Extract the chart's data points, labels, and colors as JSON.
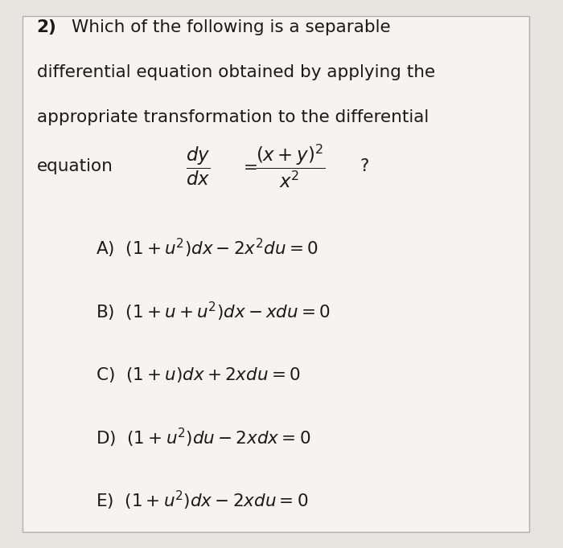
{
  "bg_color": "#e8e4df",
  "box_color": "#f5f4f2",
  "box_edge_color": "#b0b0b0",
  "text_color": "#1a1a1a",
  "question_number": "2)",
  "question_line1": "  Which of the following is a separable",
  "question_line2": "differential equation obtained by applying the",
  "question_line3": "appropriate transformation to the differential",
  "equation_label": "equation",
  "options_math": [
    "A)  $(1+u^{2})dx-2x^{2}du=0$",
    "B)  $(1+u+u^{2})dx-xdu=0$",
    "C)  $(1+u)dx+2xdu=0$",
    "D)  $(1+u^{2})du-2xdx=0$",
    "E)  $(1+u^{2})dx-2xdu=0$"
  ],
  "main_fontsize": 15.5,
  "option_fontsize": 15.5,
  "fig_width": 7.0,
  "fig_height": 6.82,
  "dpi": 100
}
